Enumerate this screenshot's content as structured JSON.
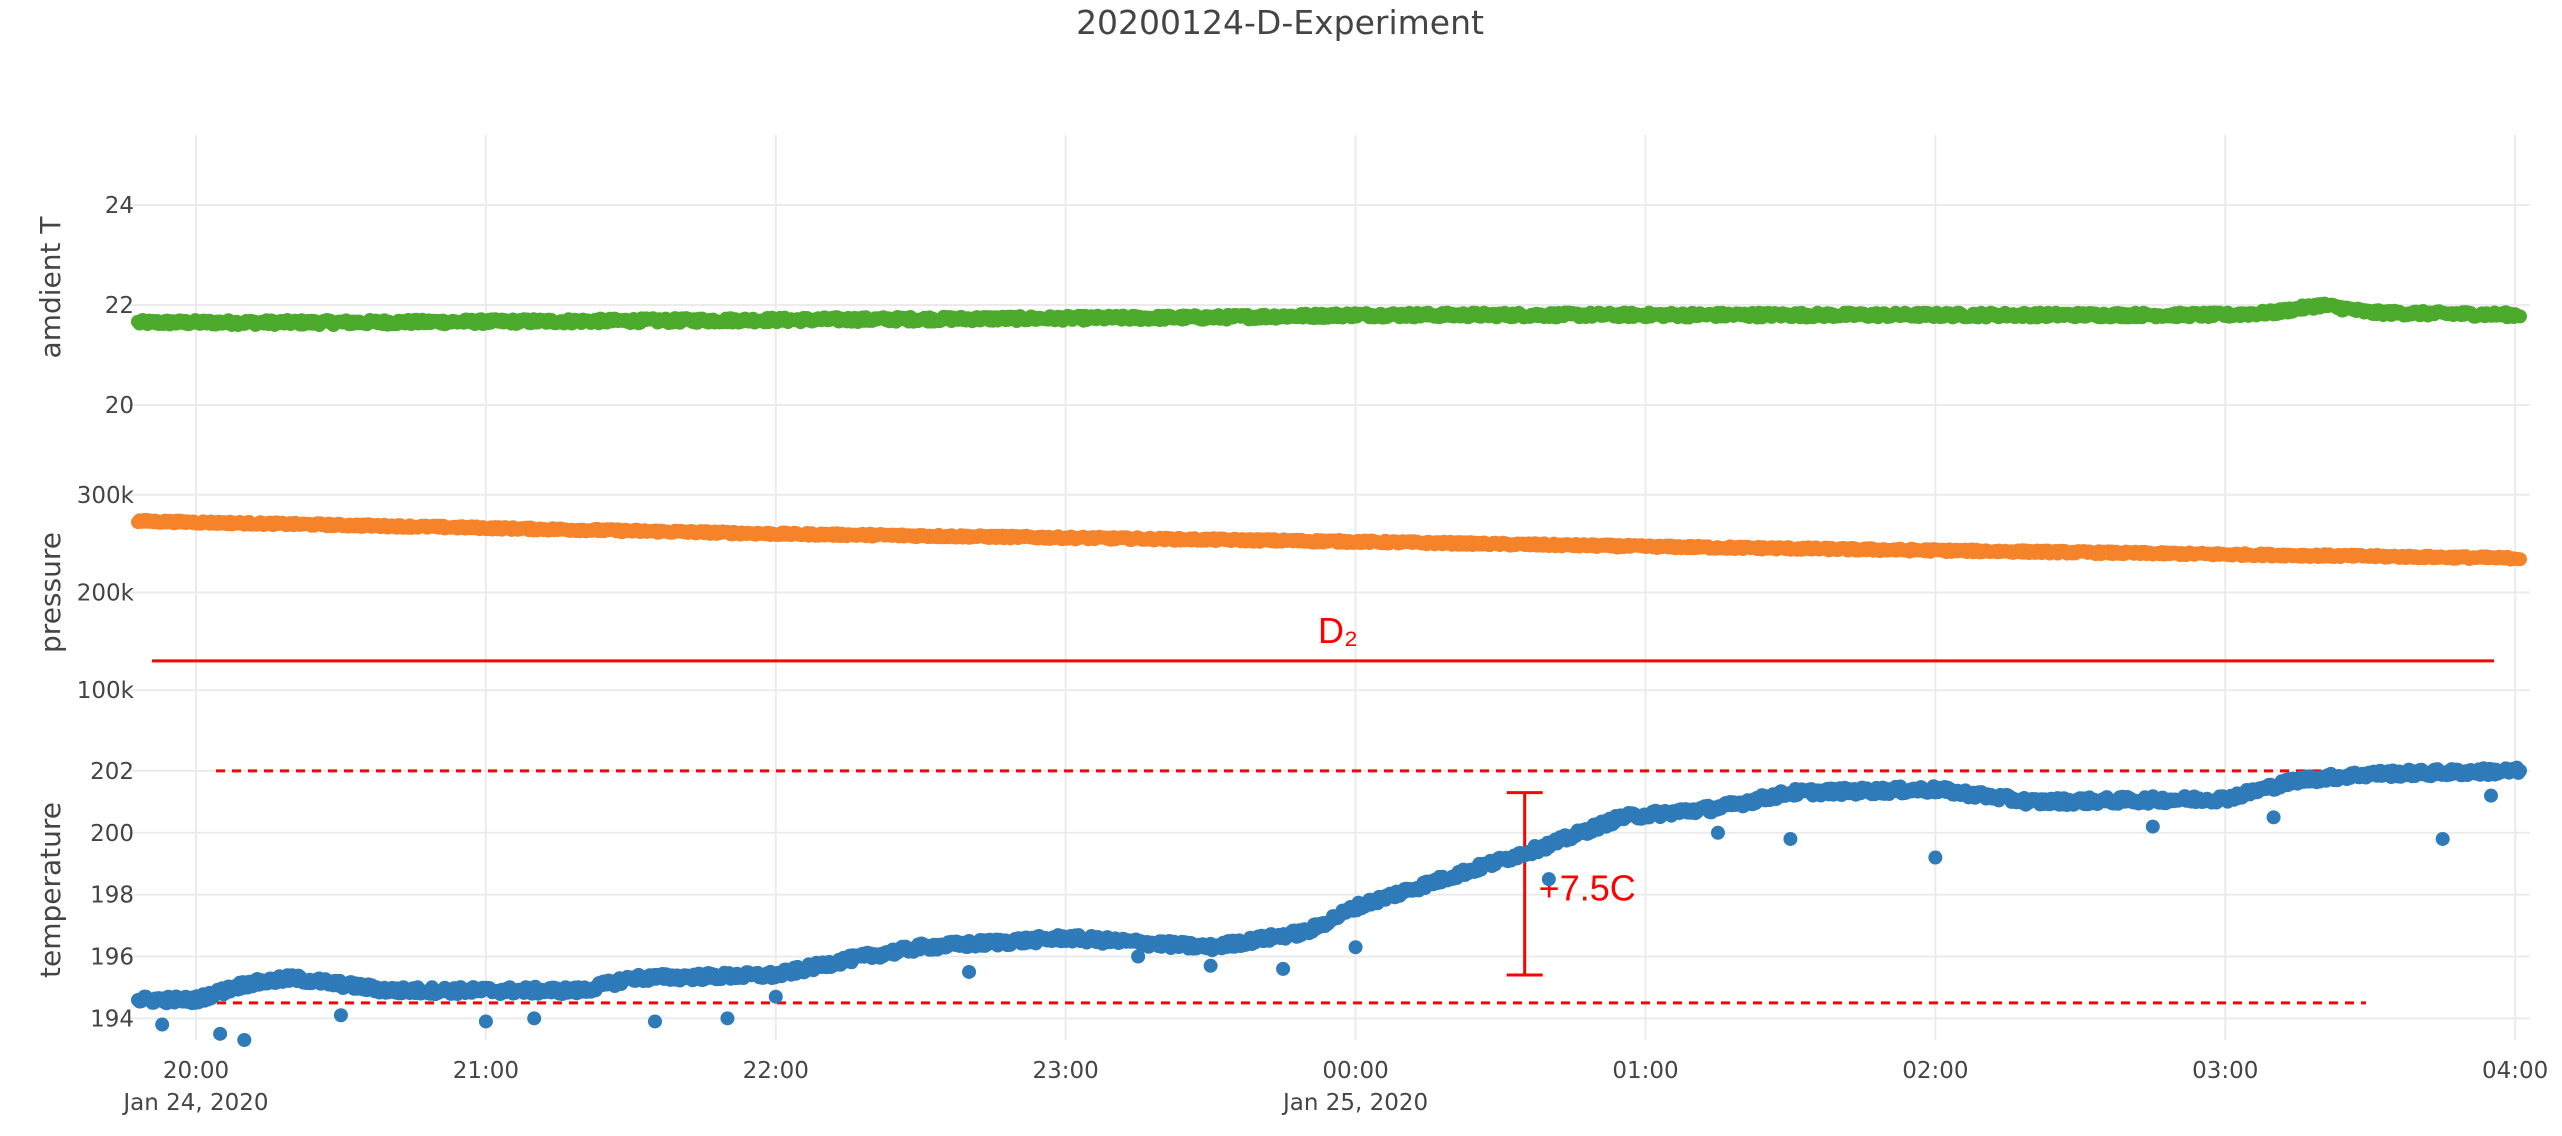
{
  "chart_data": {
    "type": "scatter",
    "title": "20200124-D-Experiment",
    "x_ticks": [
      {
        "t": "2020-01-24T20:00",
        "label": "20:00",
        "date_label": "Jan 24, 2020"
      },
      {
        "t": "2020-01-24T21:00",
        "label": "21:00",
        "date_label": ""
      },
      {
        "t": "2020-01-24T22:00",
        "label": "22:00",
        "date_label": ""
      },
      {
        "t": "2020-01-24T23:00",
        "label": "23:00",
        "date_label": ""
      },
      {
        "t": "2020-01-25T00:00",
        "label": "00:00",
        "date_label": "Jan 25, 2020"
      },
      {
        "t": "2020-01-25T01:00",
        "label": "01:00",
        "date_label": ""
      },
      {
        "t": "2020-01-25T02:00",
        "label": "02:00",
        "date_label": ""
      },
      {
        "t": "2020-01-25T03:00",
        "label": "03:00",
        "date_label": ""
      },
      {
        "t": "2020-01-25T04:00",
        "label": "04:00",
        "date_label": ""
      }
    ],
    "xlim": [
      "2020-01-24T19:48",
      "2020-01-25T04:01"
    ],
    "grid": true,
    "panels": [
      {
        "ylabel": "amdient T",
        "ylim": [
          19.3,
          25.4
        ],
        "yticks": [
          {
            "v": 20,
            "label": "20"
          },
          {
            "v": 22,
            "label": "22"
          },
          {
            "v": 24,
            "label": "24"
          }
        ],
        "series": {
          "color": "#4caa2c",
          "noise": 0.05,
          "points": [
            [
              "2020-01-24T19:48",
              21.65
            ],
            [
              "2020-01-24T20:30",
              21.65
            ],
            [
              "2020-01-24T22:00",
              21.7
            ],
            [
              "2020-01-24T23:30",
              21.75
            ],
            [
              "2020-01-25T00:00",
              21.8
            ],
            [
              "2020-01-25T01:00",
              21.8
            ],
            [
              "2020-01-25T02:00",
              21.8
            ],
            [
              "2020-01-25T03:00",
              21.8
            ],
            [
              "2020-01-25T03:10",
              21.85
            ],
            [
              "2020-01-25T03:20",
              22.0
            ],
            [
              "2020-01-25T03:30",
              21.85
            ],
            [
              "2020-01-25T04:01",
              21.8
            ]
          ]
        }
      },
      {
        "ylabel": "pressure",
        "ylim": [
          90000,
          310000
        ],
        "yticks": [
          {
            "v": 100000,
            "label": "100k"
          },
          {
            "v": 200000,
            "label": "200k"
          },
          {
            "v": 300000,
            "label": "300k"
          }
        ],
        "series": {
          "color": "#f5832a",
          "noise": 1500,
          "points": [
            [
              "2020-01-24T19:48",
              273000
            ],
            [
              "2020-01-24T21:00",
              266000
            ],
            [
              "2020-01-24T22:00",
              260000
            ],
            [
              "2020-01-24T23:00",
              256000
            ],
            [
              "2020-01-25T00:00",
              252000
            ],
            [
              "2020-01-25T01:00",
              247000
            ],
            [
              "2020-01-25T02:00",
              243000
            ],
            [
              "2020-01-25T03:00",
              239000
            ],
            [
              "2020-01-25T04:01",
              235000
            ]
          ]
        }
      },
      {
        "ylabel": "temperature",
        "ylim": [
          193.3,
          203.0
        ],
        "yticks": [
          {
            "v": 194,
            "label": "194"
          },
          {
            "v": 196,
            "label": "196"
          },
          {
            "v": 198,
            "label": "198"
          },
          {
            "v": 200,
            "label": "200"
          },
          {
            "v": 202,
            "label": "202"
          }
        ],
        "series": {
          "color": "#2f7ab8",
          "noise": 0.12,
          "points": [
            [
              "2020-01-24T19:48",
              194.6
            ],
            [
              "2020-01-24T20:00",
              194.6
            ],
            [
              "2020-01-24T20:10",
              195.1
            ],
            [
              "2020-01-24T20:20",
              195.3
            ],
            [
              "2020-01-24T20:40",
              194.9
            ],
            [
              "2020-01-24T21:20",
              194.9
            ],
            [
              "2020-01-24T21:30",
              195.3
            ],
            [
              "2020-01-24T22:00",
              195.4
            ],
            [
              "2020-01-24T22:15",
              195.9
            ],
            [
              "2020-01-24T22:30",
              196.3
            ],
            [
              "2020-01-24T23:00",
              196.6
            ],
            [
              "2020-01-24T23:30",
              196.3
            ],
            [
              "2020-01-24T23:50",
              196.8
            ],
            [
              "2020-01-25T00:00",
              197.6
            ],
            [
              "2020-01-25T00:20",
              198.6
            ],
            [
              "2020-01-25T00:40",
              199.6
            ],
            [
              "2020-01-25T00:55",
              200.5
            ],
            [
              "2020-01-25T01:15",
              200.8
            ],
            [
              "2020-01-25T01:30",
              201.3
            ],
            [
              "2020-01-25T02:00",
              201.4
            ],
            [
              "2020-01-25T02:20",
              201.0
            ],
            [
              "2020-01-25T03:00",
              201.1
            ],
            [
              "2020-01-25T03:15",
              201.7
            ],
            [
              "2020-01-25T03:30",
              201.9
            ],
            [
              "2020-01-25T04:01",
              202.0
            ]
          ]
        },
        "outliers": [
          [
            "2020-01-24T19:53",
            193.8
          ],
          [
            "2020-01-24T20:05",
            193.5
          ],
          [
            "2020-01-24T20:10",
            193.3
          ],
          [
            "2020-01-24T20:30",
            194.1
          ],
          [
            "2020-01-24T21:00",
            193.9
          ],
          [
            "2020-01-24T21:10",
            194.0
          ],
          [
            "2020-01-24T21:35",
            193.9
          ],
          [
            "2020-01-24T21:50",
            194.0
          ],
          [
            "2020-01-24T22:00",
            194.7
          ],
          [
            "2020-01-24T22:40",
            195.5
          ],
          [
            "2020-01-24T23:15",
            196.0
          ],
          [
            "2020-01-24T23:30",
            195.7
          ],
          [
            "2020-01-24T23:45",
            195.6
          ],
          [
            "2020-01-25T00:00",
            196.3
          ],
          [
            "2020-01-25T00:40",
            198.5
          ],
          [
            "2020-01-25T01:15",
            200.0
          ],
          [
            "2020-01-25T01:30",
            199.8
          ],
          [
            "2020-01-25T02:00",
            199.2
          ],
          [
            "2020-01-25T02:45",
            200.2
          ],
          [
            "2020-01-25T03:10",
            200.5
          ],
          [
            "2020-01-25T03:45",
            199.8
          ],
          [
            "2020-01-25T03:55",
            201.2
          ]
        ]
      }
    ],
    "annotations": {
      "color": "#ff0000",
      "pressure_line_value": 130000,
      "gas_label": "D₂",
      "temp_upper_ref": 202.0,
      "temp_lower_ref": 194.5,
      "delta_label": "+7.5C",
      "delta_time": "2020-01-25T00:35"
    }
  }
}
